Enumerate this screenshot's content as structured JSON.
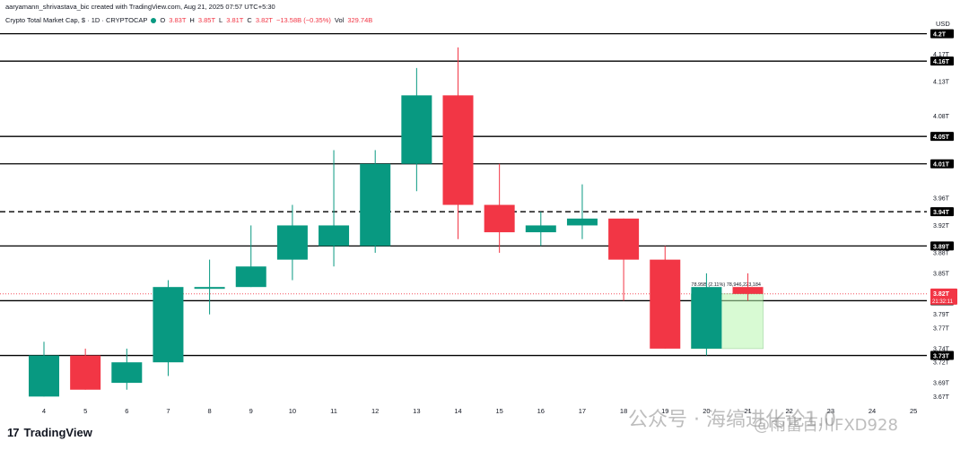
{
  "header": {
    "author_line": "aaryamann_shrivastava_bic created with TradingView.com, Aug 21, 2025 07:57 UTC+5:30",
    "symbol": "Crypto Total Market Cap, $ · 1D · CRYPTOCAP",
    "o_label": "O",
    "o_val": "3.83T",
    "h_label": "H",
    "h_val": "3.85T",
    "l_label": "L",
    "l_val": "3.81T",
    "c_label": "C",
    "c_val": "3.82T",
    "change": "−13.58B (−0.35%)",
    "vol_label": "Vol",
    "vol_val": "329.74B",
    "currency": "USD"
  },
  "brand": {
    "logo": "17",
    "name": "TradingView"
  },
  "watermark": {
    "text1": "公众号 · 海缟进化论1.0",
    "text2": "@雨富百川FXD928"
  },
  "colors": {
    "up": "#089981",
    "down": "#f23645",
    "line": "#000000",
    "price_dotted": "#f23645"
  },
  "chart_data": {
    "type": "candlestick",
    "y_range": [
      3.66,
      4.21
    ],
    "x_ticks": [
      "4",
      "5",
      "6",
      "7",
      "8",
      "9",
      "10",
      "11",
      "12",
      "13",
      "14",
      "15",
      "16",
      "17",
      "18",
      "19",
      "20",
      "21",
      "22",
      "23",
      "24",
      "25"
    ],
    "y_ticks": [
      "4.17T",
      "4.13T",
      "4.08T",
      "3.96T",
      "3.92T",
      "3.88T",
      "3.85T",
      "3.79T",
      "3.77T",
      "3.74T",
      "3.72T",
      "3.69T",
      "3.67T"
    ],
    "candles": [
      {
        "x": "4",
        "o": 3.67,
        "h": 3.75,
        "l": 3.67,
        "c": 3.73
      },
      {
        "x": "5",
        "o": 3.73,
        "h": 3.74,
        "l": 3.68,
        "c": 3.68
      },
      {
        "x": "6",
        "o": 3.69,
        "h": 3.74,
        "l": 3.68,
        "c": 3.72
      },
      {
        "x": "7",
        "o": 3.72,
        "h": 3.84,
        "l": 3.7,
        "c": 3.83
      },
      {
        "x": "8",
        "o": 3.83,
        "h": 3.87,
        "l": 3.79,
        "c": 3.83
      },
      {
        "x": "9",
        "o": 3.83,
        "h": 3.92,
        "l": 3.83,
        "c": 3.86
      },
      {
        "x": "10",
        "o": 3.87,
        "h": 3.95,
        "l": 3.84,
        "c": 3.92
      },
      {
        "x": "11",
        "o": 3.89,
        "h": 4.03,
        "l": 3.86,
        "c": 3.92
      },
      {
        "x": "12",
        "o": 3.89,
        "h": 4.03,
        "l": 3.88,
        "c": 4.01
      },
      {
        "x": "13",
        "o": 4.01,
        "h": 4.15,
        "l": 3.97,
        "c": 4.11
      },
      {
        "x": "14",
        "o": 4.11,
        "h": 4.18,
        "l": 3.9,
        "c": 3.95
      },
      {
        "x": "15",
        "o": 3.95,
        "h": 4.01,
        "l": 3.88,
        "c": 3.91
      },
      {
        "x": "16",
        "o": 3.91,
        "h": 3.94,
        "l": 3.89,
        "c": 3.92
      },
      {
        "x": "17",
        "o": 3.92,
        "h": 3.98,
        "l": 3.9,
        "c": 3.93
      },
      {
        "x": "18",
        "o": 3.93,
        "h": 3.93,
        "l": 3.81,
        "c": 3.87
      },
      {
        "x": "19",
        "o": 3.87,
        "h": 3.89,
        "l": 3.74,
        "c": 3.74
      },
      {
        "x": "20",
        "o": 3.74,
        "h": 3.85,
        "l": 3.73,
        "c": 3.83
      },
      {
        "x": "21",
        "o": 3.83,
        "h": 3.85,
        "l": 3.81,
        "c": 3.82
      }
    ],
    "horizontal_levels": [
      {
        "value": 4.2,
        "label": "4.2T",
        "style": "solid"
      },
      {
        "value": 4.16,
        "label": "4.16T",
        "style": "solid"
      },
      {
        "value": 4.05,
        "label": "4.05T",
        "style": "solid"
      },
      {
        "value": 4.01,
        "label": "4.01T",
        "style": "solid"
      },
      {
        "value": 3.94,
        "label": "3.94T",
        "style": "dashed"
      },
      {
        "value": 3.89,
        "label": "3.89T",
        "style": "solid"
      },
      {
        "value": 3.81,
        "label": "3.81T",
        "style": "solid"
      },
      {
        "value": 3.73,
        "label": "3.73T",
        "style": "solid"
      }
    ],
    "last_price": {
      "value": 3.82,
      "label": "3.82T",
      "countdown": "21:32:11"
    },
    "measure": {
      "from_x": "20",
      "to_x": "21",
      "low": 3.74,
      "high": 3.82,
      "label": "78.95B (2.11%) 78,946,223,184"
    }
  }
}
